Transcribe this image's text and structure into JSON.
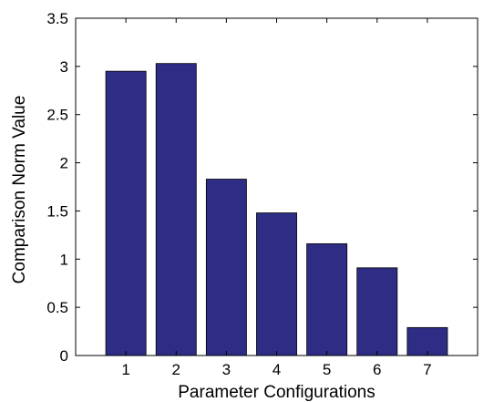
{
  "chart_data": {
    "type": "bar",
    "title": "",
    "xlabel": "Parameter Configurations",
    "ylabel": "Comparison Norm Value",
    "categories": [
      "1",
      "2",
      "3",
      "4",
      "5",
      "6",
      "7"
    ],
    "values": [
      2.95,
      3.03,
      1.83,
      1.48,
      1.16,
      0.91,
      0.29
    ],
    "ylim": [
      0,
      3.5
    ],
    "yticks": [
      "0",
      "0.5",
      "1",
      "1.5",
      "2",
      "2.5",
      "3",
      "3.5"
    ],
    "grid": false,
    "legend": "none",
    "colors": {
      "bar": "#2e2c85",
      "axis": "#000000"
    }
  }
}
